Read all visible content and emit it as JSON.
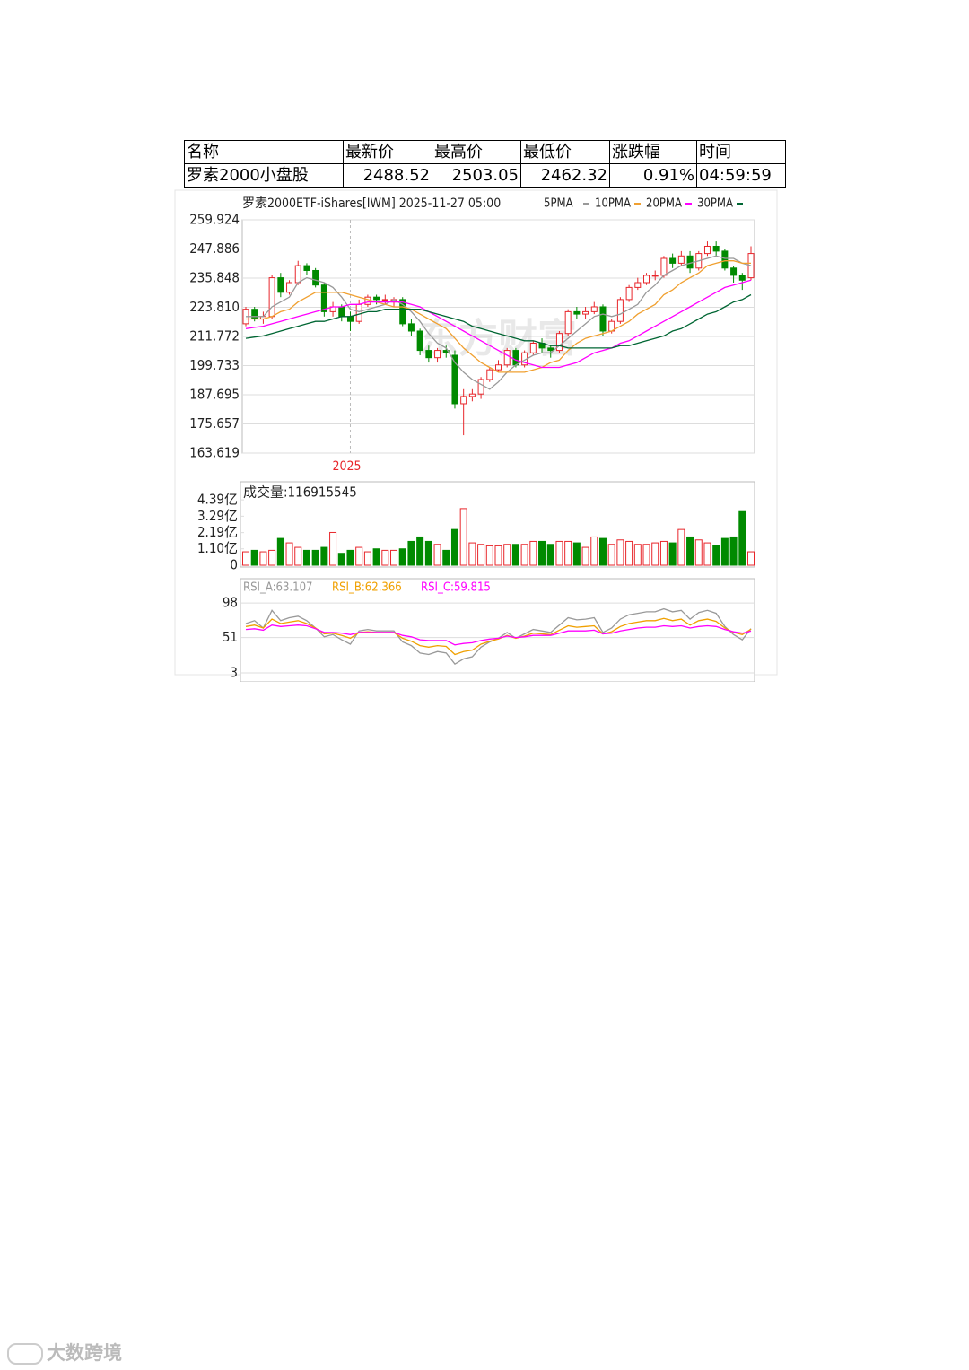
{
  "table": {
    "header": [
      "名称",
      "最新价",
      "最高价",
      "最低价",
      "涨跌幅",
      "时间"
    ],
    "rows": [
      [
        "罗素2000小盘股",
        "2488.52",
        "2503.05",
        "2462.32",
        "0.91%",
        "04:59:59"
      ]
    ]
  },
  "chart_data": [
    {
      "type": "candlestick",
      "title": "罗素2000ETF-iShares[IWM] 2025-11-27 05:00",
      "watermark": "东方财富",
      "categories": [
        null,
        null,
        null,
        null,
        null,
        null,
        null,
        null,
        null,
        null,
        null,
        null,
        "2025",
        null,
        null,
        null,
        null,
        null,
        null,
        null,
        null,
        null,
        null,
        null,
        null,
        null,
        null,
        null,
        null,
        null,
        null,
        null,
        null,
        null,
        null,
        null,
        null,
        null,
        null,
        null,
        null,
        null,
        null,
        null,
        null,
        null,
        null,
        null,
        null,
        null,
        null,
        null,
        null,
        null,
        null,
        null,
        null,
        null,
        null
      ],
      "open": [
        217,
        223,
        219,
        220,
        236,
        230,
        234,
        241,
        239,
        233,
        222,
        224,
        220,
        218,
        225,
        228,
        227,
        226,
        227,
        217,
        214,
        206,
        203,
        206,
        204,
        184,
        187,
        188,
        194,
        198,
        200,
        206,
        200,
        205,
        209,
        207,
        206,
        213,
        222,
        221,
        222,
        224,
        214,
        218,
        227,
        232,
        234,
        237,
        237,
        244,
        242,
        245,
        240,
        246,
        249,
        247,
        240,
        237,
        236
      ],
      "high": [
        224,
        224,
        222,
        237,
        238,
        235,
        243,
        242,
        240,
        234,
        226,
        225,
        222,
        227,
        229,
        229,
        229,
        228,
        228,
        219,
        215,
        208,
        207,
        208,
        206,
        190,
        190,
        195,
        199,
        202,
        207,
        207,
        206,
        210,
        211,
        208,
        214,
        223,
        224,
        224,
        226,
        225,
        219,
        228,
        233,
        236,
        238,
        239,
        245,
        246,
        247,
        247,
        247,
        251,
        251,
        248,
        241,
        238,
        249
      ],
      "low": [
        216,
        218,
        217,
        219,
        228,
        229,
        233,
        237,
        232,
        220,
        220,
        218,
        214,
        217,
        224,
        225,
        225,
        224,
        216,
        212,
        204,
        201,
        201,
        203,
        182,
        171,
        185,
        186,
        193,
        197,
        199,
        199,
        199,
        204,
        205,
        203,
        205,
        212,
        219,
        219,
        221,
        212,
        213,
        217,
        226,
        231,
        233,
        235,
        236,
        240,
        241,
        238,
        239,
        245,
        245,
        239,
        234,
        231,
        235
      ],
      "close": [
        223,
        219,
        220,
        236,
        230,
        234,
        241,
        239,
        233,
        222,
        224,
        220,
        218,
        225,
        228,
        227,
        227,
        227,
        217,
        214,
        206,
        203,
        206,
        205,
        184,
        187,
        188,
        194,
        198,
        200,
        206,
        200,
        205,
        209,
        207,
        206,
        213,
        222,
        221,
        222,
        224,
        214,
        218,
        227,
        232,
        234,
        237,
        237,
        244,
        242,
        245,
        240,
        246,
        249,
        247,
        240,
        237,
        235,
        246
      ],
      "up_color": "#e8262b",
      "down_color": "#008a00",
      "series": [
        {
          "name": "5PMA",
          "color": "#999999",
          "values": [
            220,
            220,
            220,
            224,
            226,
            228,
            234,
            236,
            235,
            234,
            232,
            228,
            223,
            222,
            223,
            224,
            225,
            227,
            225,
            222,
            218,
            213,
            209,
            207,
            201,
            197,
            194,
            192,
            190,
            193,
            197,
            200,
            202,
            204,
            205,
            205,
            208,
            211,
            214,
            217,
            220,
            221,
            220,
            221,
            223,
            225,
            230,
            233,
            237,
            239,
            241,
            242,
            243,
            244,
            245,
            244,
            244,
            242,
            241
          ]
        },
        {
          "name": "10PMA",
          "color": "#f0a030",
          "values": [
            219,
            219,
            219,
            220,
            222,
            223,
            226,
            228,
            230,
            230,
            230,
            230,
            229,
            228,
            227,
            226,
            225,
            224,
            224,
            223,
            221,
            219,
            217,
            215,
            211,
            207,
            204,
            201,
            199,
            197,
            197,
            197,
            197,
            198,
            199,
            201,
            202,
            206,
            209,
            211,
            212,
            213,
            214,
            216,
            218,
            221,
            223,
            225,
            229,
            231,
            234,
            236,
            238,
            241,
            242,
            243,
            243,
            242,
            242
          ]
        },
        {
          "name": "20PMA",
          "color": "#ff00ff",
          "values": [
            215,
            215.5,
            216,
            217,
            218,
            219,
            220,
            221,
            222,
            223,
            224,
            224,
            225,
            225,
            226,
            226,
            226,
            226,
            226,
            225,
            224,
            222,
            220,
            218,
            216,
            214,
            212,
            210,
            208,
            206,
            204,
            202,
            201,
            200,
            199,
            199,
            199,
            200,
            201,
            203,
            205,
            206,
            207,
            209,
            210,
            212,
            214,
            216,
            218,
            220,
            222,
            224,
            226,
            228,
            230,
            232,
            233,
            234,
            235
          ]
        },
        {
          "name": "30PMA",
          "color": "#006633",
          "values": [
            211,
            211.5,
            212,
            213,
            214,
            215,
            216,
            217,
            218,
            218,
            219,
            220,
            220,
            221,
            222,
            222,
            223,
            223,
            223,
            223,
            223,
            222,
            221,
            220,
            219,
            218,
            216,
            215,
            214,
            213,
            212,
            211,
            210,
            210,
            209,
            208,
            208,
            207,
            207,
            207,
            207,
            207,
            207,
            208,
            208,
            209,
            210,
            211,
            212,
            214,
            215,
            217,
            219,
            221,
            222,
            224,
            226,
            227,
            229
          ]
        }
      ],
      "ylim": [
        163.619,
        259.924
      ],
      "yticks": [
        259.924,
        247.886,
        235.848,
        {
          "value": 223.81,
          "label": "223.810"
        },
        211.772,
        199.733,
        187.695,
        175.657,
        163.619
      ],
      "grid": true
    },
    {
      "type": "bar",
      "title": "成交量:116915545",
      "values": [
        0.9,
        1.0,
        0.9,
        1.0,
        1.8,
        1.5,
        1.2,
        1.0,
        1.0,
        1.2,
        2.2,
        0.8,
        1.0,
        1.2,
        0.9,
        1.1,
        1.0,
        1.0,
        1.1,
        1.6,
        1.9,
        1.6,
        1.4,
        1.0,
        2.4,
        3.8,
        1.5,
        1.4,
        1.3,
        1.3,
        1.4,
        1.4,
        1.4,
        1.6,
        1.6,
        1.4,
        1.6,
        1.6,
        1.5,
        1.2,
        1.9,
        1.8,
        1.4,
        1.7,
        1.6,
        1.4,
        1.4,
        1.5,
        1.6,
        1.5,
        2.4,
        1.9,
        1.7,
        1.5,
        1.3,
        1.8,
        1.9,
        3.6,
        0.9
      ],
      "ylim": [
        0,
        5.6
      ],
      "yticks": [
        {
          "value": 4.39,
          "label": "4.39亿"
        },
        {
          "value": 3.29,
          "label": "3.29亿"
        },
        {
          "value": 2.19,
          "label": "2.19亿"
        },
        {
          "value": 1.1,
          "label": "1.10亿"
        },
        0
      ]
    },
    {
      "type": "line",
      "series": [
        {
          "name": "RSI_A:63.107",
          "color": "#999999",
          "values": [
            70,
            74,
            64,
            88,
            74,
            78,
            80,
            74,
            64,
            52,
            55,
            48,
            42,
            60,
            62,
            60,
            60,
            60,
            45,
            40,
            30,
            28,
            32,
            30,
            15,
            22,
            25,
            38,
            45,
            50,
            58,
            50,
            56,
            62,
            60,
            58,
            68,
            78,
            75,
            76,
            78,
            58,
            64,
            76,
            82,
            84,
            86,
            86,
            90,
            86,
            88,
            76,
            85,
            88,
            84,
            66,
            55,
            48,
            63.107
          ]
        },
        {
          "name": "RSI_B:62.366",
          "color": "#f0a000",
          "values": [
            66,
            68,
            64,
            76,
            70,
            72,
            74,
            70,
            64,
            56,
            57,
            54,
            50,
            58,
            59,
            58,
            58,
            58,
            50,
            46,
            40,
            38,
            40,
            39,
            28,
            32,
            34,
            42,
            46,
            49,
            54,
            50,
            53,
            57,
            56,
            55,
            61,
            67,
            65,
            66,
            67,
            56,
            59,
            66,
            70,
            72,
            74,
            74,
            77,
            74,
            76,
            68,
            74,
            76,
            73,
            64,
            58,
            55,
            62.366
          ]
        },
        {
          "name": "RSI_C:59.815",
          "color": "#ff00ff",
          "values": [
            62,
            63,
            61,
            68,
            66,
            67,
            68,
            67,
            63,
            58,
            58,
            57,
            55,
            58,
            58,
            58,
            58,
            58,
            54,
            52,
            48,
            47,
            47,
            47,
            41,
            43,
            44,
            47,
            49,
            50,
            53,
            51,
            52,
            54,
            54,
            54,
            57,
            60,
            60,
            60,
            61,
            56,
            57,
            60,
            62,
            64,
            65,
            65,
            67,
            66,
            67,
            64,
            66,
            67,
            66,
            62,
            59,
            57,
            59.815
          ]
        }
      ],
      "ylim": [
        3,
        131
      ],
      "yticks": [
        98,
        51,
        3
      ],
      "grid": true
    }
  ],
  "footer_logo": "大数跨境"
}
